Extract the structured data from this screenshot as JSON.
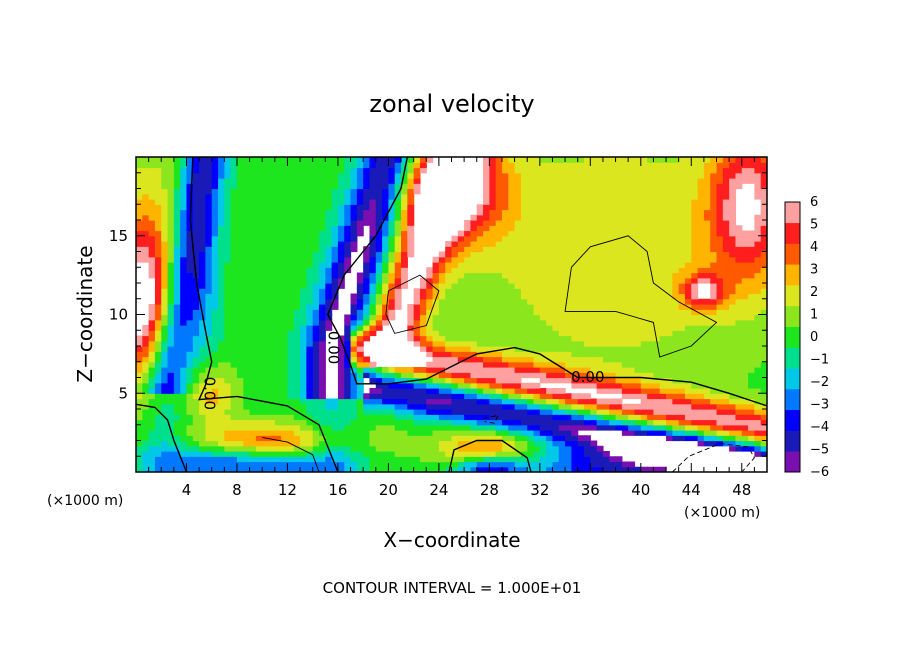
{
  "chart_data": {
    "type": "heatmap",
    "title": "zonal velocity",
    "xlabel": "X−coordinate",
    "ylabel": "Z−coordinate",
    "x_unit_left": "(×1000 m)",
    "x_unit_right": "(×1000 m)",
    "footer": "CONTOUR INTERVAL = 1.000E+01",
    "xlim": [
      0,
      50
    ],
    "ylim": [
      0,
      20
    ],
    "x_ticks": [
      4,
      8,
      12,
      16,
      20,
      24,
      28,
      32,
      36,
      40,
      44,
      48
    ],
    "x_tick_labels": [
      "4",
      "8",
      "12",
      "16",
      "20",
      "24",
      "28",
      "32",
      "36",
      "40",
      "44",
      "48"
    ],
    "y_ticks": [
      5,
      10,
      15
    ],
    "y_tick_labels": [
      "5",
      "10",
      "15"
    ],
    "colorbar": {
      "levels": [
        -6,
        -5,
        -4,
        -3,
        -2,
        -1,
        0,
        1,
        2,
        3,
        4,
        5,
        6
      ],
      "labels": [
        "−6",
        "−5",
        "−4",
        "−3",
        "−2",
        "−1",
        "0",
        "1",
        "2",
        "3",
        "4",
        "5",
        "6"
      ],
      "colors": [
        "#7a0fb0",
        "#1a1ab8",
        "#0000ff",
        "#0078ff",
        "#00c8e6",
        "#00e08c",
        "#1ee61e",
        "#8ce61e",
        "#dce61e",
        "#ffb400",
        "#ff5a00",
        "#ff1e1e",
        "#ffa0a0"
      ]
    },
    "contour_labels": [
      {
        "text": "0.00",
        "x": 35.8,
        "y": 6.0,
        "rotate": 0
      },
      {
        "text": "0.00",
        "x": 15.6,
        "y": 7.9,
        "rotate": 90
      },
      {
        "text": "0.00",
        "x": 5.8,
        "y": 5.0,
        "rotate": 90
      }
    ]
  }
}
